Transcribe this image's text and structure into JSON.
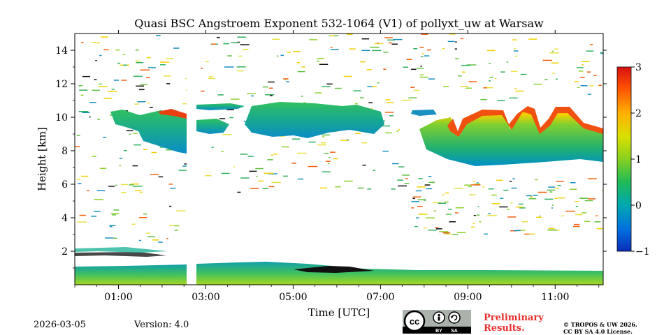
{
  "chart_data": {
    "type": "heatmap",
    "title": "Quasi BSC Angstroem Exponent 532-1064 (V1) of pollyxt_uw at Warsaw",
    "xlabel": "Time [UTC]",
    "ylabel": "Height [km]",
    "xlim": [
      0.0,
      12.1
    ],
    "ylim": [
      0,
      15
    ],
    "x_ticks": [
      {
        "value": 1,
        "label": "01:00"
      },
      {
        "value": 3,
        "label": "03:00"
      },
      {
        "value": 5,
        "label": "05:00"
      },
      {
        "value": 7,
        "label": "07:00"
      },
      {
        "value": 9,
        "label": "09:00"
      },
      {
        "value": 11,
        "label": "11:00"
      }
    ],
    "y_ticks": [
      2,
      4,
      6,
      8,
      10,
      12,
      14
    ],
    "colorbar": {
      "range": [
        -1,
        3
      ],
      "ticks": [
        -1,
        0,
        1,
        2,
        3
      ],
      "tick_labels": [
        "−1",
        "0",
        "1",
        "2",
        "3"
      ],
      "colormap": "jet-like (blue → green → yellow → red)"
    },
    "data_gap_utc": [
      2.6,
      2.8
    ],
    "features": [
      {
        "name": "boundary layer",
        "time_utc": [
          0.0,
          12.1
        ],
        "height_km": [
          0.0,
          1.2
        ],
        "typical_value": 0.6
      },
      {
        "name": "cloud layer early",
        "time_utc": [
          0.8,
          2.6
        ],
        "height_km": [
          7.8,
          10.3
        ],
        "typical_value": 0.4
      },
      {
        "name": "cloud layer mid",
        "time_utc": [
          2.8,
          7.2
        ],
        "height_km": [
          8.5,
          10.8
        ],
        "typical_value": 0.5
      },
      {
        "name": "cloud layer late",
        "time_utc": [
          7.3,
          12.1
        ],
        "height_km": [
          7.2,
          10.6
        ],
        "typical_value": 0.6
      },
      {
        "name": "cloud top high values",
        "time_utc": [
          8.5,
          12.1
        ],
        "height_km": [
          9.0,
          10.6
        ],
        "typical_value": 2.3
      }
    ]
  },
  "footer": {
    "date": "2026-03-05",
    "version": "Version: 4.0",
    "preliminary_line1": "Preliminary",
    "preliminary_line2": "Results.",
    "copyright_line1": "© TROPOS & UW 2026.",
    "copyright_line2": "CC BY SA 4.0 License.",
    "license_badge": {
      "by": "BY",
      "sa": "SA"
    }
  }
}
